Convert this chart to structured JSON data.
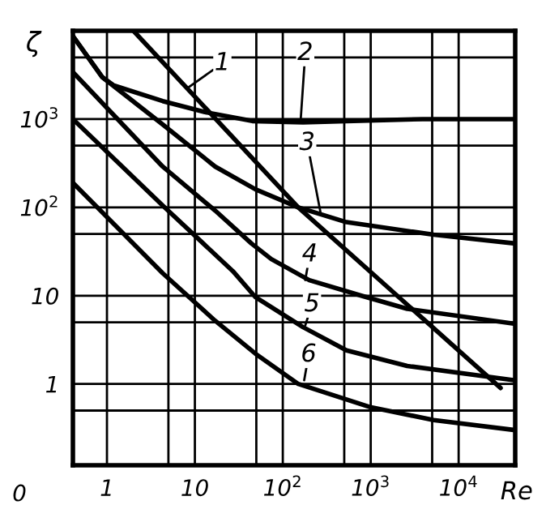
{
  "chart_data": {
    "type": "line",
    "xlabel": "Re",
    "ylabel": "ζ",
    "log": "xy",
    "grid": true,
    "marker": "none",
    "line_style": "solid",
    "xlim": [
      0.41,
      44000
    ],
    "ylim": [
      0.12,
      10000
    ],
    "xticks": [
      1,
      10,
      {
        "value": 100,
        "label": "10$^{2}$"
      },
      {
        "value": 1000,
        "label": "10$^{3}$"
      },
      {
        "value": 10000,
        "label": "10$^{4}$"
      },
      {
        "value": 5,
        "label": null
      },
      {
        "value": 50,
        "label": null
      },
      {
        "value": 500,
        "label": null
      },
      {
        "value": 5000,
        "label": null
      }
    ],
    "yticks": [
      1,
      10,
      {
        "value": 100,
        "label": "10$^{2}$"
      },
      {
        "value": 1000,
        "label": "10$^{3}$"
      },
      {
        "value": 0.5,
        "label": null
      },
      {
        "value": 5,
        "label": null
      },
      {
        "value": 50,
        "label": null
      },
      {
        "value": 500,
        "label": null
      },
      {
        "value": 5000,
        "label": null
      }
    ],
    "series": [
      {
        "color": "#000000",
        "x": [
          2,
          150,
          30000
        ],
        "values": [
          10000,
          100,
          0.9
        ]
      },
      {
        "color": "#000000",
        "x": [
          0.41,
          0.88,
          1.2,
          4.3,
          13,
          45,
          170,
          530,
          3900,
          44000
        ],
        "values": [
          8700,
          3000,
          2400,
          1600,
          1200,
          950,
          920,
          950,
          1000,
          1000
        ]
      },
      {
        "color": "#000000",
        "x": [
          0.41,
          0.88,
          4.3,
          17,
          49,
          150,
          530,
          5200,
          44000
        ],
        "values": [
          8700,
          3000,
          870,
          290,
          160,
          100,
          68,
          49,
          39
        ]
      },
      {
        "color": "#000000",
        "x": [
          0.41,
          4.3,
          17,
          44,
          74,
          200,
          780,
          2600,
          44000
        ],
        "values": [
          3400,
          290,
          92,
          39,
          26,
          15,
          10,
          7.1,
          4.8
        ]
      },
      {
        "color": "#000000",
        "x": [
          0.41,
          4.3,
          27,
          49,
          170,
          530,
          2600,
          44000
        ],
        "values": [
          1000,
          105,
          19,
          9.6,
          4.4,
          2.4,
          1.6,
          1.1
        ]
      },
      {
        "color": "#000000",
        "x": [
          0.41,
          4.3,
          17,
          49,
          150,
          960,
          5200,
          44000
        ],
        "values": [
          190,
          18,
          5.2,
          2.2,
          1,
          0.55,
          0.39,
          0.3
        ]
      }
    ],
    "annotations": [
      {
        "text": "1",
        "x": 8,
        "y": 2200
      },
      {
        "text": "2",
        "x": 160,
        "y": 1000
      },
      {
        "text": "3",
        "x": 270,
        "y": 85
      },
      {
        "text": "4",
        "x": 180,
        "y": 15
      },
      {
        "text": "5",
        "x": 180,
        "y": 4.6
      },
      {
        "text": "6",
        "x": 175,
        "y": 1.1
      },
      "0"
    ]
  }
}
